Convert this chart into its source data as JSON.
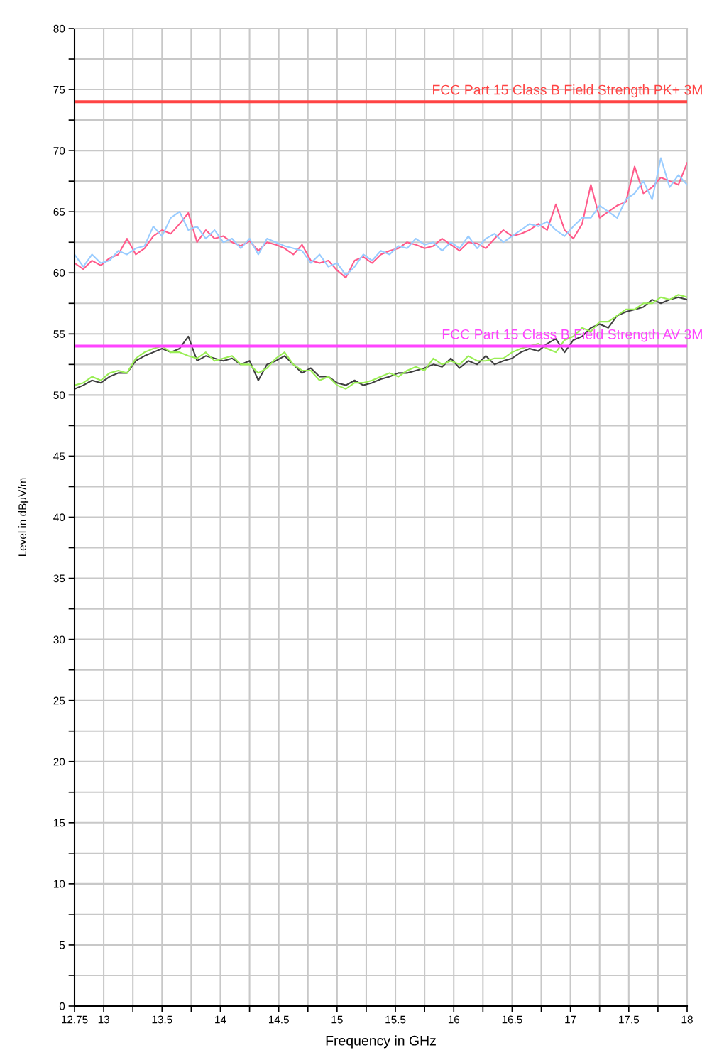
{
  "chart_data": {
    "type": "line",
    "xlabel": "Frequency in GHz",
    "ylabel": "Level in dBµV/m",
    "x": [
      12.75,
      12.825,
      12.9,
      12.975,
      13.05,
      13.125,
      13.2,
      13.275,
      13.35,
      13.425,
      13.5,
      13.575,
      13.65,
      13.725,
      13.8,
      13.875,
      13.95,
      14.025,
      14.1,
      14.175,
      14.25,
      14.325,
      14.4,
      14.475,
      14.55,
      14.625,
      14.7,
      14.775,
      14.85,
      14.925,
      15.0,
      15.075,
      15.15,
      15.225,
      15.3,
      15.375,
      15.45,
      15.525,
      15.6,
      15.675,
      15.75,
      15.825,
      15.9,
      15.975,
      16.05,
      16.125,
      16.2,
      16.275,
      16.35,
      16.425,
      16.5,
      16.575,
      16.65,
      16.725,
      16.8,
      16.875,
      16.95,
      17.025,
      17.1,
      17.175,
      17.25,
      17.325,
      17.4,
      17.475,
      17.55,
      17.625,
      17.7,
      17.775,
      17.85,
      17.925,
      18.0
    ],
    "series": [
      {
        "color": "#ff5a8a",
        "values": [
          60.8,
          60.3,
          61.0,
          60.6,
          61.2,
          61.5,
          62.8,
          61.5,
          62.0,
          63.0,
          63.5,
          63.2,
          64.0,
          64.9,
          62.5,
          63.5,
          62.8,
          63.0,
          62.5,
          62.2,
          62.6,
          61.8,
          62.5,
          62.3,
          62.0,
          61.5,
          62.3,
          61.0,
          60.8,
          61.0,
          60.2,
          59.6,
          61.0,
          61.3,
          60.8,
          61.5,
          61.8,
          62.0,
          62.5,
          62.3,
          62.0,
          62.2,
          62.8,
          62.3,
          61.8,
          62.5,
          62.4,
          62.0,
          62.8,
          63.5,
          63.0,
          63.2,
          63.5,
          64.0,
          63.5,
          65.6,
          63.5,
          62.8,
          64.0,
          67.2,
          64.5,
          65.0,
          65.5,
          65.8,
          68.7,
          66.5,
          67.0,
          67.8,
          67.5,
          67.2,
          69.0
        ]
      },
      {
        "color": "#99ccff",
        "values": [
          61.5,
          60.5,
          61.5,
          60.8,
          61.0,
          61.8,
          61.5,
          62.0,
          62.2,
          63.8,
          63.0,
          64.5,
          65.0,
          63.5,
          63.8,
          62.8,
          63.5,
          62.5,
          62.8,
          62.0,
          62.8,
          61.5,
          62.8,
          62.5,
          62.2,
          62.0,
          61.8,
          60.8,
          61.5,
          60.5,
          60.8,
          59.8,
          60.5,
          61.5,
          61.0,
          61.8,
          61.5,
          62.2,
          62.0,
          62.8,
          62.3,
          62.5,
          61.8,
          62.5,
          62.0,
          63.0,
          62.0,
          62.8,
          63.2,
          62.5,
          63.0,
          63.5,
          64.0,
          63.8,
          64.2,
          63.5,
          63.0,
          63.8,
          64.5,
          64.5,
          65.5,
          65.0,
          64.5,
          66.0,
          66.5,
          67.5,
          66.0,
          69.4,
          67.0,
          68.0,
          67.2
        ]
      },
      {
        "color": "#404040",
        "values": [
          50.5,
          50.8,
          51.2,
          51.0,
          51.5,
          51.8,
          51.8,
          52.8,
          53.2,
          53.5,
          53.8,
          53.5,
          53.8,
          54.8,
          52.8,
          53.2,
          53.0,
          52.8,
          53.0,
          52.5,
          52.8,
          51.2,
          52.5,
          52.8,
          53.2,
          52.5,
          51.8,
          52.2,
          51.5,
          51.5,
          51.0,
          50.8,
          51.2,
          50.8,
          51.0,
          51.3,
          51.5,
          51.8,
          51.8,
          52.0,
          52.2,
          52.5,
          52.3,
          53.0,
          52.2,
          52.8,
          52.5,
          53.2,
          52.5,
          52.8,
          53.0,
          53.5,
          53.8,
          53.6,
          54.2,
          54.6,
          53.5,
          54.5,
          54.8,
          55.5,
          55.8,
          55.5,
          56.5,
          56.8,
          57.0,
          57.2,
          57.8,
          57.5,
          57.8,
          58.0,
          57.8
        ]
      },
      {
        "color": "#99ee55",
        "values": [
          50.8,
          51.0,
          51.5,
          51.2,
          51.8,
          52.0,
          51.8,
          53.0,
          53.5,
          53.8,
          54.0,
          53.5,
          53.5,
          53.2,
          53.0,
          53.5,
          52.8,
          53.0,
          53.2,
          52.5,
          52.5,
          51.8,
          52.2,
          53.0,
          53.5,
          52.5,
          52.0,
          52.0,
          51.2,
          51.5,
          50.8,
          50.5,
          51.0,
          51.0,
          51.2,
          51.5,
          51.8,
          51.5,
          52.0,
          52.3,
          52.0,
          53.0,
          52.5,
          52.8,
          52.5,
          53.2,
          52.8,
          52.8,
          53.0,
          53.0,
          53.5,
          53.8,
          54.0,
          54.2,
          53.8,
          53.5,
          54.5,
          54.8,
          55.5,
          55.2,
          56.0,
          56.0,
          56.5,
          57.0,
          57.0,
          57.5,
          57.5,
          58.0,
          57.8,
          58.2,
          58.0
        ]
      }
    ],
    "ref_lines": [
      {
        "axis": "y",
        "value": 74,
        "label": "FCC Part 15 Class B Field Strength PK+ 3M",
        "color": "#ff4444"
      },
      {
        "axis": "y",
        "value": 54,
        "label": "FCC Part 15 Class B Field Strength AV 3M",
        "color": "#ff44ff"
      }
    ],
    "xlim": [
      12.75,
      18
    ],
    "xticks": [
      12.75,
      13,
      {
        "value": 13.25,
        "label": null
      },
      13.5,
      {
        "value": 13.75,
        "label": null
      },
      14,
      {
        "value": 14.25,
        "label": null
      },
      14.5,
      {
        "value": 14.75,
        "label": null
      },
      15,
      {
        "value": 15.25,
        "label": null
      },
      15.5,
      {
        "value": 15.75,
        "label": null
      },
      16,
      {
        "value": 16.25,
        "label": null
      },
      16.5,
      {
        "value": 16.75,
        "label": null
      },
      17,
      {
        "value": 17.25,
        "label": null
      },
      17.5,
      {
        "value": 17.75,
        "label": null
      },
      18
    ],
    "ylim": [
      0,
      80
    ],
    "yticks": [
      0,
      {
        "value": 2.5,
        "label": null
      },
      5,
      {
        "value": 7.5,
        "label": null
      },
      10,
      {
        "value": 12.5,
        "label": null
      },
      15,
      {
        "value": 17.5,
        "label": null
      },
      20,
      {
        "value": 22.5,
        "label": null
      },
      25,
      {
        "value": 27.5,
        "label": null
      },
      30,
      {
        "value": 32.5,
        "label": null
      },
      35,
      {
        "value": 37.5,
        "label": null
      },
      40,
      {
        "value": 42.5,
        "label": null
      },
      45,
      {
        "value": 47.5,
        "label": null
      },
      50,
      {
        "value": 52.5,
        "label": null
      },
      55,
      {
        "value": 57.5,
        "label": null
      },
      60,
      {
        "value": 62.5,
        "label": null
      },
      65,
      {
        "value": 67.5,
        "label": null
      },
      70,
      {
        "value": 72.5,
        "label": null
      },
      75,
      {
        "value": 77.5,
        "label": null
      },
      80
    ],
    "grid": true
  }
}
